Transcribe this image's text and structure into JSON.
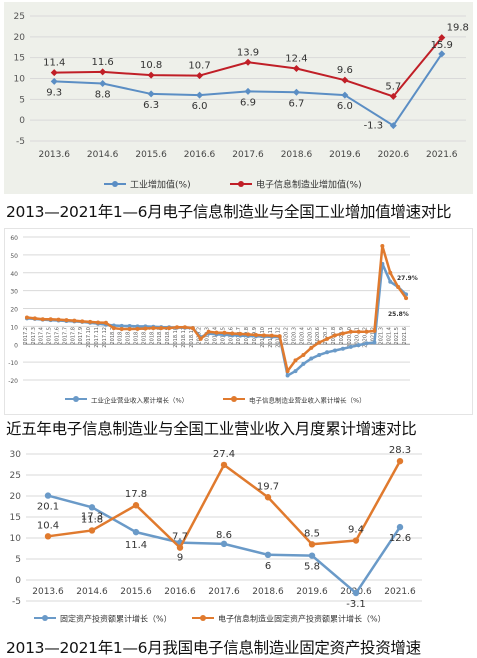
{
  "chart_data": [
    {
      "type": "line",
      "categories": [
        "2013.6",
        "2014.6",
        "2015.6",
        "2016.6",
        "2017.6",
        "2018.6",
        "2019.6",
        "2020.6",
        "2021.6"
      ],
      "series": [
        {
          "name": "工业增加值(%)",
          "values": [
            9.3,
            8.8,
            6.3,
            6.0,
            6.9,
            6.7,
            6.0,
            -1.3,
            15.9
          ],
          "color": "#5b8ec4"
        },
        {
          "name": "电子信息制造业增加值(%)",
          "values": [
            11.4,
            11.6,
            10.8,
            10.7,
            13.9,
            12.4,
            9.6,
            5.7,
            19.8
          ],
          "color": "#c01f27"
        }
      ],
      "ylim": [
        -5,
        25
      ],
      "yticks": [
        -5,
        0,
        5,
        10,
        15,
        20,
        25
      ],
      "grid": true,
      "legend": "bottom",
      "caption": "2013—2021年1—6月电子信息制造业与全国工业增加值增速对比"
    },
    {
      "type": "line",
      "categories": [
        "2017.2",
        "2017.3",
        "2017.4",
        "2017.5",
        "2017.6",
        "2017.7",
        "2017.8",
        "2017.9",
        "2017.10",
        "2017.11",
        "2017.12",
        "2018.2",
        "2018.3",
        "2018.4",
        "2018.5",
        "2018.6",
        "2018.7",
        "2018.8",
        "2018.9",
        "2018.10",
        "2018.11",
        "2018.12",
        "2019.2",
        "2019.3",
        "2019.4",
        "2019.5",
        "2019.6",
        "2019.7",
        "2019.8",
        "2019.9",
        "2019.10",
        "2019.11",
        "2019.12",
        "2020.2",
        "2020.3",
        "2020.4",
        "2020.5",
        "2020.6",
        "2020.7",
        "2020.8",
        "2020.9",
        "2020.10",
        "2020.11",
        "2020.12",
        "2021.2",
        "2021.3",
        "2021.4",
        "2021.5",
        "2021.6"
      ],
      "series": [
        {
          "name": "工业企业营业收入累计增长（%）",
          "values": [
            14.5,
            14.2,
            13.8,
            13.5,
            13.3,
            13.0,
            12.8,
            12.5,
            12.0,
            11.5,
            11.0,
            10.5,
            10.3,
            10.2,
            10.0,
            10.0,
            9.8,
            9.6,
            9.5,
            9.3,
            9.2,
            9.0,
            4.0,
            6.0,
            5.5,
            5.3,
            5.0,
            4.8,
            4.6,
            4.5,
            4.3,
            4.1,
            4.0,
            -17.5,
            -15.0,
            -11.0,
            -8.0,
            -6.0,
            -4.5,
            -3.5,
            -2.5,
            -1.5,
            -0.5,
            0.5,
            1.0,
            45.0,
            35.0,
            32.0,
            27.9
          ],
          "color": "#6a9ac8"
        },
        {
          "name": "电子信息制造业营业收入累计增长（%）",
          "values": [
            15.0,
            14.5,
            14.0,
            14.0,
            13.8,
            13.5,
            13.2,
            12.8,
            12.5,
            12.2,
            12.0,
            9.0,
            8.5,
            8.5,
            8.6,
            8.8,
            9.0,
            9.0,
            9.0,
            9.5,
            9.5,
            9.0,
            3.0,
            7.0,
            6.5,
            6.4,
            6.0,
            5.8,
            5.5,
            5.2,
            5.0,
            4.8,
            4.5,
            -15.0,
            -9.0,
            -6.0,
            -2.0,
            1.0,
            3.0,
            5.0,
            6.0,
            7.0,
            7.0,
            7.0,
            7.5,
            55.0,
            40.0,
            32.0,
            25.8
          ],
          "color": "#e07a2e"
        }
      ],
      "ylim": [
        -20,
        60
      ],
      "yticks": [
        -20,
        -10,
        0,
        10,
        20,
        30,
        40,
        50,
        60
      ],
      "annotations": [
        "27.9%",
        "25.8%"
      ],
      "grid": true,
      "legend": "bottom",
      "caption": "近五年电子信息制造业与全国工业营业收入月度累计增速对比"
    },
    {
      "type": "line",
      "categories": [
        "2013.6",
        "2014.6",
        "2015.6",
        "2016.6",
        "2017.6",
        "2018.6",
        "2019.6",
        "2020.6",
        "2021.6"
      ],
      "series": [
        {
          "name": "固定资产投资额累计增长（%）",
          "values": [
            20.1,
            17.3,
            11.4,
            8.9,
            8.6,
            6.0,
            5.8,
            -3.1,
            12.6
          ],
          "color": "#6a9ac8"
        },
        {
          "name": "电子信息制造业固定资产投资额累计增长（%）",
          "values": [
            10.4,
            11.8,
            17.8,
            7.7,
            27.4,
            19.7,
            8.5,
            9.4,
            28.3
          ],
          "color": "#e07a2e"
        }
      ],
      "value_labels": [
        [
          "20.1",
          "17.3",
          "11.4",
          "9",
          "8.6",
          "6",
          "5.8",
          "-3.1",
          "12.6"
        ],
        [
          "10.4",
          "11.8",
          "17.8",
          "7.7",
          "27.4",
          "19.7",
          "8.5",
          "9.4",
          "28.3"
        ]
      ],
      "ylim": [
        -5,
        30
      ],
      "yticks": [
        -5,
        0,
        5,
        10,
        15,
        20,
        25,
        30
      ],
      "grid": true,
      "legend": "bottom",
      "caption": "2013—2021年1—6月我国电子信息制造业固定资产投资增速"
    }
  ]
}
